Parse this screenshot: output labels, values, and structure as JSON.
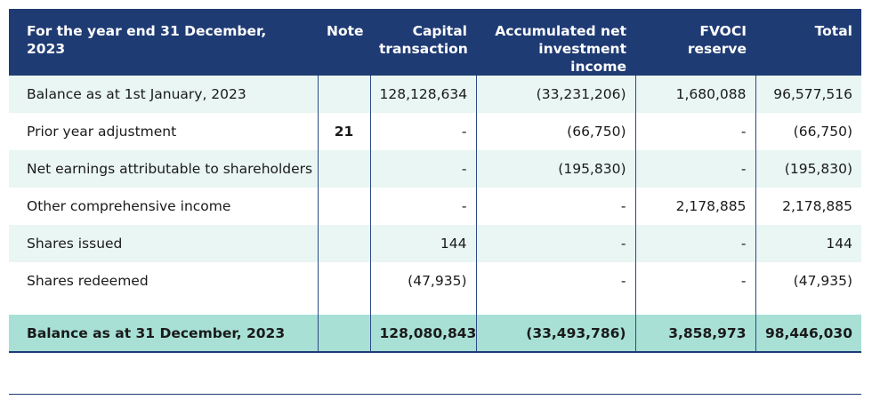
{
  "table": {
    "headers": {
      "period": "For the year end 31 December, 2023",
      "note": "Note",
      "capital": "Capital transaction",
      "accumulated": "Accumulated net investment income",
      "fvoci": "FVOCI reserve",
      "total": "Total"
    },
    "rows": [
      {
        "label": "Balance as at 1st January, 2023",
        "note": "",
        "capital": "128,128,634",
        "accumulated": "(33,231,206)",
        "fvoci": "1,680,088",
        "total": "96,577,516"
      },
      {
        "label": "Prior year adjustment",
        "note": "21",
        "capital": "-",
        "accumulated": "(66,750)",
        "fvoci": "-",
        "total": "(66,750)"
      },
      {
        "label": "Net earnings attributable to shareholders",
        "note": "",
        "capital": "-",
        "accumulated": "(195,830)",
        "fvoci": "-",
        "total": "(195,830)"
      },
      {
        "label": "Other comprehensive income",
        "note": "",
        "capital": "-",
        "accumulated": "-",
        "fvoci": "2,178,885",
        "total": "2,178,885"
      },
      {
        "label": "Shares issued",
        "note": "",
        "capital": "144",
        "accumulated": "-",
        "fvoci": "-",
        "total": "144"
      },
      {
        "label": "Shares redeemed",
        "note": "",
        "capital": "(47,935)",
        "accumulated": "-",
        "fvoci": "-",
        "total": "(47,935)"
      }
    ],
    "total_row": {
      "label": "Balance as at 31 December, 2023",
      "note": "",
      "capital": "128,080,843",
      "accumulated": "(33,493,786)",
      "fvoci": "3,858,973",
      "total": "98,446,030"
    }
  },
  "colors": {
    "header_bg": "#1f3b73",
    "band_bg": "#e9f6f3",
    "total_bg": "#a8e0d6"
  }
}
